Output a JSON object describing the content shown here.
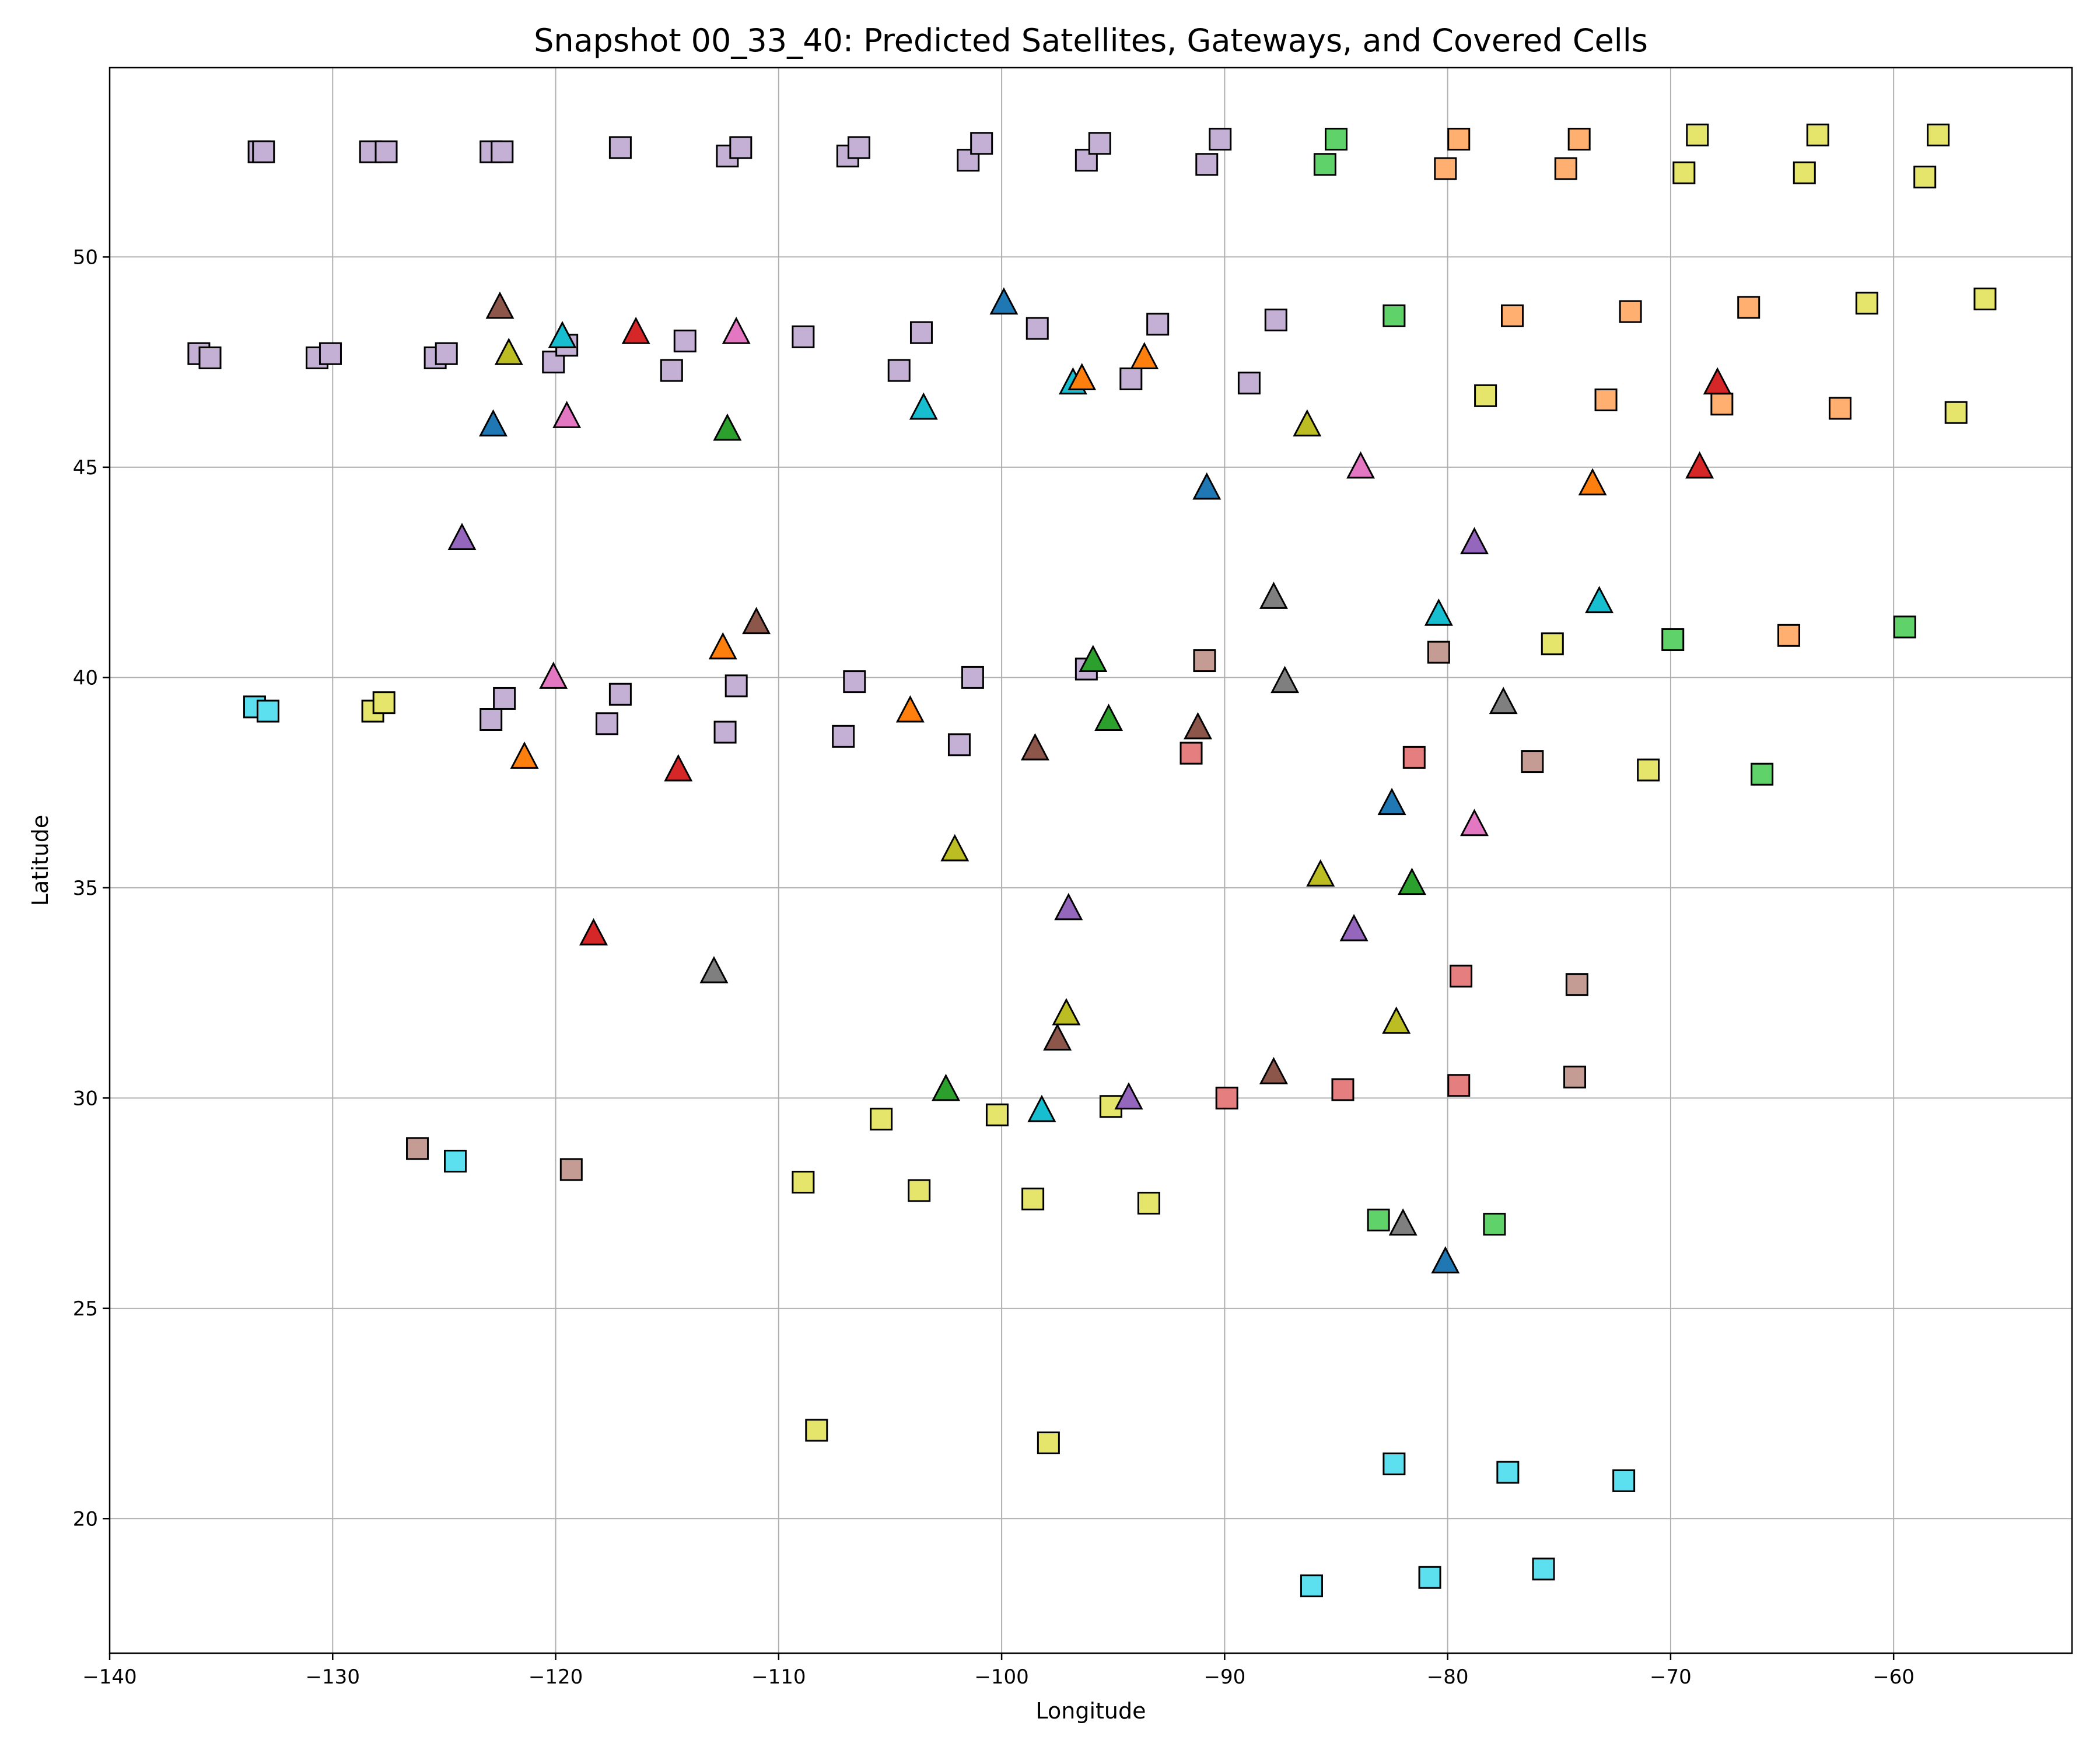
{
  "chart_data": {
    "type": "scatter",
    "title": "Snapshot 00_33_40: Predicted Satellites, Gateways, and Covered Cells",
    "xlabel": "Longitude",
    "ylabel": "Latitude",
    "xlim": [
      -140,
      -52
    ],
    "ylim": [
      16.8,
      54.5
    ],
    "xticks": [
      -140,
      -130,
      -120,
      -110,
      -100,
      -90,
      -80,
      -70,
      -60
    ],
    "yticks": [
      20,
      25,
      30,
      35,
      40,
      45,
      50
    ],
    "grid": true,
    "legend": "none",
    "colors": {
      "lavender": "#c5b0d5",
      "green": "#5fd36a",
      "orange": "#ffb070",
      "yellow": "#e5e56b",
      "rose": "#c49c94",
      "salmon": "#e57e7e",
      "cyan": "#5cdfee",
      "t_blue": "#1f77b4",
      "t_orange": "#ff7f0e",
      "t_green": "#2ca02c",
      "t_red": "#d62728",
      "t_purple": "#9467bd",
      "t_brown": "#8c564b",
      "t_pink": "#e377c2",
      "t_gray": "#7f7f7f",
      "t_olive": "#bcbd22",
      "t_cyan": "#17becf"
    },
    "squares": [
      [
        -133.3,
        52.5,
        "lavender"
      ],
      [
        -133.1,
        52.5,
        "lavender"
      ],
      [
        -128.3,
        52.5,
        "lavender"
      ],
      [
        -127.6,
        52.5,
        "lavender"
      ],
      [
        -122.9,
        52.5,
        "lavender"
      ],
      [
        -122.4,
        52.5,
        "lavender"
      ],
      [
        -117.1,
        52.6,
        "lavender"
      ],
      [
        -112.3,
        52.4,
        "lavender"
      ],
      [
        -111.7,
        52.6,
        "lavender"
      ],
      [
        -106.9,
        52.4,
        "lavender"
      ],
      [
        -106.4,
        52.6,
        "lavender"
      ],
      [
        -101.5,
        52.3,
        "lavender"
      ],
      [
        -100.9,
        52.7,
        "lavender"
      ],
      [
        -96.2,
        52.3,
        "lavender"
      ],
      [
        -95.6,
        52.7,
        "lavender"
      ],
      [
        -90.8,
        52.2,
        "lavender"
      ],
      [
        -90.2,
        52.8,
        "lavender"
      ],
      [
        -85.5,
        52.2,
        "green"
      ],
      [
        -85.0,
        52.8,
        "green"
      ],
      [
        -80.1,
        52.1,
        "orange"
      ],
      [
        -79.5,
        52.8,
        "orange"
      ],
      [
        -74.7,
        52.1,
        "orange"
      ],
      [
        -74.1,
        52.8,
        "orange"
      ],
      [
        -69.4,
        52.0,
        "yellow"
      ],
      [
        -68.8,
        52.9,
        "yellow"
      ],
      [
        -64.0,
        52.0,
        "yellow"
      ],
      [
        -63.4,
        52.9,
        "yellow"
      ],
      [
        -58.6,
        51.9,
        "yellow"
      ],
      [
        -58.0,
        52.9,
        "yellow"
      ],
      [
        -136.0,
        47.7,
        "lavender"
      ],
      [
        -135.5,
        47.6,
        "lavender"
      ],
      [
        -130.7,
        47.6,
        "lavender"
      ],
      [
        -130.1,
        47.7,
        "lavender"
      ],
      [
        -125.4,
        47.6,
        "lavender"
      ],
      [
        -124.9,
        47.7,
        "lavender"
      ],
      [
        -120.1,
        47.5,
        "lavender"
      ],
      [
        -119.5,
        47.9,
        "lavender"
      ],
      [
        -114.8,
        47.3,
        "lavender"
      ],
      [
        -114.2,
        48.0,
        "lavender"
      ],
      [
        -108.9,
        48.1,
        "lavender"
      ],
      [
        -104.6,
        47.3,
        "lavender"
      ],
      [
        -103.6,
        48.2,
        "lavender"
      ],
      [
        -98.4,
        48.3,
        "lavender"
      ],
      [
        -94.2,
        47.1,
        "lavender"
      ],
      [
        -93.0,
        48.4,
        "lavender"
      ],
      [
        -88.9,
        47.0,
        "lavender"
      ],
      [
        -87.7,
        48.5,
        "lavender"
      ],
      [
        -82.4,
        48.6,
        "green"
      ],
      [
        -78.3,
        46.7,
        "yellow"
      ],
      [
        -77.1,
        48.6,
        "orange"
      ],
      [
        -72.9,
        46.6,
        "orange"
      ],
      [
        -71.8,
        48.7,
        "orange"
      ],
      [
        -67.7,
        46.5,
        "orange"
      ],
      [
        -66.5,
        48.8,
        "orange"
      ],
      [
        -62.4,
        46.4,
        "orange"
      ],
      [
        -61.2,
        48.9,
        "yellow"
      ],
      [
        -57.2,
        46.3,
        "yellow"
      ],
      [
        -55.9,
        49.0,
        "yellow"
      ],
      [
        -133.5,
        39.3,
        "cyan"
      ],
      [
        -132.9,
        39.2,
        "cyan"
      ],
      [
        -128.2,
        39.2,
        "yellow"
      ],
      [
        -127.7,
        39.4,
        "yellow"
      ],
      [
        -122.9,
        39.0,
        "lavender"
      ],
      [
        -122.3,
        39.5,
        "lavender"
      ],
      [
        -117.7,
        38.9,
        "lavender"
      ],
      [
        -117.1,
        39.6,
        "lavender"
      ],
      [
        -112.4,
        38.7,
        "lavender"
      ],
      [
        -111.9,
        39.8,
        "lavender"
      ],
      [
        -107.1,
        38.6,
        "lavender"
      ],
      [
        -106.6,
        39.9,
        "lavender"
      ],
      [
        -101.9,
        38.4,
        "lavender"
      ],
      [
        -101.3,
        40.0,
        "lavender"
      ],
      [
        -96.2,
        40.2,
        "lavender"
      ],
      [
        -91.5,
        38.2,
        "salmon"
      ],
      [
        -90.9,
        40.4,
        "rose"
      ],
      [
        -80.4,
        40.6,
        "rose"
      ],
      [
        -81.5,
        38.1,
        "salmon"
      ],
      [
        -76.2,
        38.0,
        "rose"
      ],
      [
        -75.3,
        40.8,
        "yellow"
      ],
      [
        -71.0,
        37.8,
        "yellow"
      ],
      [
        -69.9,
        40.9,
        "green"
      ],
      [
        -65.9,
        37.7,
        "green"
      ],
      [
        -64.7,
        41.0,
        "orange"
      ],
      [
        -59.5,
        41.2,
        "green"
      ],
      [
        -126.2,
        28.8,
        "rose"
      ],
      [
        -124.5,
        28.5,
        "cyan"
      ],
      [
        -119.3,
        28.3,
        "rose"
      ],
      [
        -105.4,
        29.5,
        "yellow"
      ],
      [
        -100.2,
        29.6,
        "yellow"
      ],
      [
        -95.1,
        29.8,
        "yellow"
      ],
      [
        -89.9,
        30.0,
        "salmon"
      ],
      [
        -84.7,
        30.2,
        "salmon"
      ],
      [
        -79.5,
        30.3,
        "salmon"
      ],
      [
        -79.4,
        32.9,
        "salmon"
      ],
      [
        -74.3,
        30.5,
        "rose"
      ],
      [
        -74.2,
        32.7,
        "rose"
      ],
      [
        -108.9,
        28.0,
        "yellow"
      ],
      [
        -103.7,
        27.8,
        "yellow"
      ],
      [
        -98.6,
        27.6,
        "yellow"
      ],
      [
        -93.4,
        27.5,
        "yellow"
      ],
      [
        -83.1,
        27.1,
        "green"
      ],
      [
        -77.9,
        27.0,
        "green"
      ],
      [
        -108.3,
        22.1,
        "yellow"
      ],
      [
        -97.9,
        21.8,
        "yellow"
      ],
      [
        -82.4,
        21.3,
        "cyan"
      ],
      [
        -77.3,
        21.1,
        "cyan"
      ],
      [
        -72.1,
        20.9,
        "cyan"
      ],
      [
        -86.1,
        18.4,
        "cyan"
      ],
      [
        -80.8,
        18.6,
        "cyan"
      ],
      [
        -75.7,
        18.8,
        "cyan"
      ]
    ],
    "triangles": [
      [
        -122.5,
        48.8,
        "t_brown"
      ],
      [
        -119.7,
        48.1,
        "t_cyan"
      ],
      [
        -116.4,
        48.2,
        "t_red"
      ],
      [
        -111.9,
        48.2,
        "t_pink"
      ],
      [
        -99.9,
        48.9,
        "t_blue"
      ],
      [
        -122.1,
        47.7,
        "t_olive"
      ],
      [
        -96.8,
        47.0,
        "t_cyan"
      ],
      [
        -96.4,
        47.1,
        "t_orange"
      ],
      [
        -93.6,
        47.6,
        "t_orange"
      ],
      [
        -67.9,
        47.0,
        "t_red"
      ],
      [
        -122.8,
        46.0,
        "t_blue"
      ],
      [
        -119.5,
        46.2,
        "t_pink"
      ],
      [
        -112.3,
        45.9,
        "t_green"
      ],
      [
        -103.5,
        46.4,
        "t_cyan"
      ],
      [
        -86.3,
        46.0,
        "t_olive"
      ],
      [
        -90.8,
        44.5,
        "t_blue"
      ],
      [
        -83.9,
        45.0,
        "t_pink"
      ],
      [
        -73.5,
        44.6,
        "t_orange"
      ],
      [
        -68.7,
        45.0,
        "t_red"
      ],
      [
        -124.2,
        43.3,
        "t_purple"
      ],
      [
        -78.8,
        43.2,
        "t_purple"
      ],
      [
        -87.8,
        41.9,
        "t_gray"
      ],
      [
        -80.4,
        41.5,
        "t_cyan"
      ],
      [
        -73.2,
        41.8,
        "t_cyan"
      ],
      [
        -111.0,
        41.3,
        "t_brown"
      ],
      [
        -112.5,
        40.7,
        "t_orange"
      ],
      [
        -95.9,
        40.4,
        "t_green"
      ],
      [
        -120.1,
        40.0,
        "t_pink"
      ],
      [
        -87.3,
        39.9,
        "t_gray"
      ],
      [
        -77.5,
        39.4,
        "t_gray"
      ],
      [
        -104.1,
        39.2,
        "t_orange"
      ],
      [
        -95.2,
        39.0,
        "t_green"
      ],
      [
        -91.2,
        38.8,
        "t_brown"
      ],
      [
        -121.4,
        38.1,
        "t_orange"
      ],
      [
        -98.5,
        38.3,
        "t_brown"
      ],
      [
        -114.5,
        37.8,
        "t_red"
      ],
      [
        -82.5,
        37.0,
        "t_blue"
      ],
      [
        -78.8,
        36.5,
        "t_pink"
      ],
      [
        -102.1,
        35.9,
        "t_olive"
      ],
      [
        -85.7,
        35.3,
        "t_olive"
      ],
      [
        -81.6,
        35.1,
        "t_green"
      ],
      [
        -97.0,
        34.5,
        "t_purple"
      ],
      [
        -84.2,
        34.0,
        "t_purple"
      ],
      [
        -118.3,
        33.9,
        "t_red"
      ],
      [
        -112.9,
        33.0,
        "t_gray"
      ],
      [
        -97.1,
        32.0,
        "t_olive"
      ],
      [
        -82.3,
        31.8,
        "t_olive"
      ],
      [
        -97.5,
        31.4,
        "t_brown"
      ],
      [
        -87.8,
        30.6,
        "t_brown"
      ],
      [
        -102.5,
        30.2,
        "t_green"
      ],
      [
        -94.3,
        30.0,
        "t_purple"
      ],
      [
        -98.2,
        29.7,
        "t_cyan"
      ],
      [
        -82.0,
        27.0,
        "t_gray"
      ],
      [
        -80.1,
        26.1,
        "t_blue"
      ]
    ]
  }
}
